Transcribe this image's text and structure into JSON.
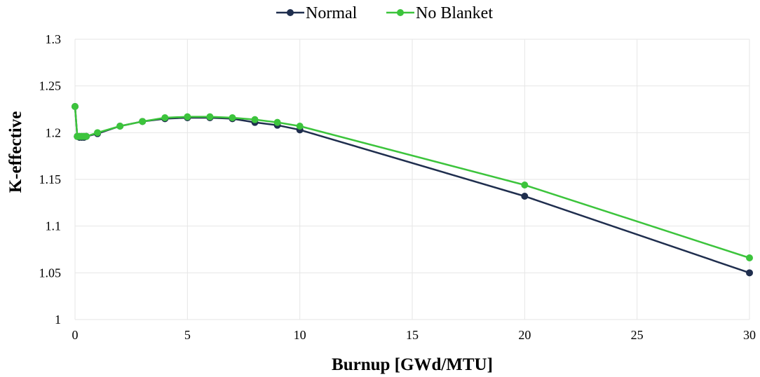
{
  "chart_data": {
    "type": "line",
    "title": "",
    "xlabel": "Burnup  [GWd/MTU]",
    "ylabel": "K-effective",
    "xlim": [
      0,
      30
    ],
    "ylim": [
      1,
      1.3
    ],
    "xticks": [
      0,
      5,
      10,
      15,
      20,
      25,
      30
    ],
    "xtick_labels": [
      "0",
      "5",
      "10",
      "15",
      "20",
      "25",
      "30"
    ],
    "yticks": [
      1,
      1.05,
      1.1,
      1.15,
      1.2,
      1.25,
      1.3
    ],
    "ytick_labels": [
      "1",
      "1.05",
      "1.1",
      "1.15",
      "1.2",
      "1.25",
      "1.3"
    ],
    "grid": true,
    "legend_position": "top-center",
    "series": [
      {
        "name": "Normal",
        "color": "#1f2e4e",
        "x": [
          0,
          0.1,
          0.2,
          0.3,
          0.4,
          0.5,
          1,
          2,
          3,
          4,
          5,
          6,
          7,
          8,
          9,
          10,
          20,
          30
        ],
        "y": [
          1.228,
          1.196,
          1.195,
          1.195,
          1.195,
          1.196,
          1.199,
          1.207,
          1.212,
          1.215,
          1.216,
          1.216,
          1.215,
          1.211,
          1.208,
          1.203,
          1.132,
          1.05
        ]
      },
      {
        "name": "No Blanket",
        "color": "#3cc43c",
        "x": [
          0,
          0.1,
          0.2,
          0.3,
          0.4,
          0.5,
          1,
          2,
          3,
          4,
          5,
          6,
          7,
          8,
          9,
          10,
          20,
          30
        ],
        "y": [
          1.228,
          1.196,
          1.196,
          1.196,
          1.196,
          1.196,
          1.2,
          1.207,
          1.212,
          1.216,
          1.217,
          1.217,
          1.216,
          1.214,
          1.211,
          1.207,
          1.144,
          1.066
        ]
      }
    ]
  }
}
